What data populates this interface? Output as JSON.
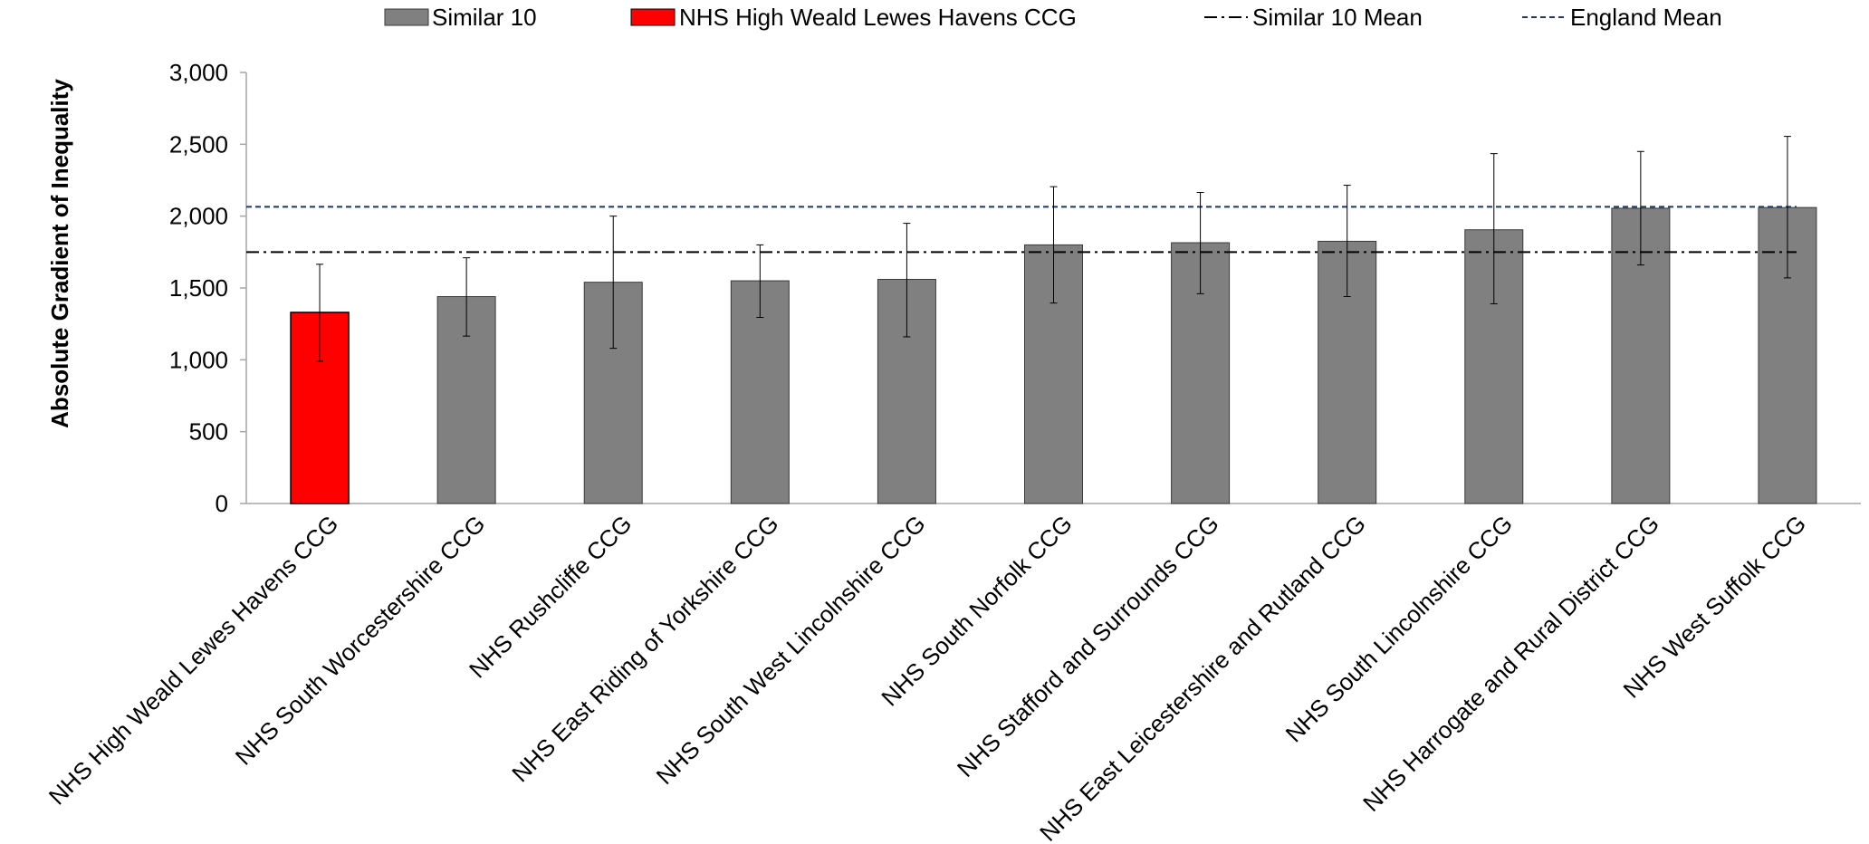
{
  "chart_data": {
    "type": "bar",
    "ylabel": "Absolute Gradient of Inequality",
    "ylim": [
      0,
      3000
    ],
    "yticks": [
      0,
      500,
      1000,
      1500,
      2000,
      2500,
      3000
    ],
    "ytick_labels": [
      "0",
      "500",
      "1,000",
      "1,500",
      "2,000",
      "2,500",
      "3,000"
    ],
    "legend_position": "top",
    "legend": [
      {
        "label": "Similar 10",
        "kind": "bar",
        "color": "#808080"
      },
      {
        "label": "NHS High Weald Lewes Havens CCG",
        "kind": "bar",
        "color": "#ff0000"
      },
      {
        "label": "Similar 10 Mean",
        "kind": "dashdot",
        "color": "#000000"
      },
      {
        "label": "England Mean",
        "kind": "dashed",
        "color": "#1f3864"
      }
    ],
    "categories": [
      "NHS High Weald Lewes Havens CCG",
      "NHS South Worcestershire CCG",
      "NHS Rushcliffe CCG",
      "NHS East Riding of Yorkshire CCG",
      "NHS South West Lincolnshire CCG",
      "NHS South Norfolk CCG",
      "NHS Stafford and Surrounds CCG",
      "NHS East Leicestershire and Rutland CCG",
      "NHS South Lincolnshire CCG",
      "NHS Harrogate and Rural District CCG",
      "NHS West Suffolk CCG"
    ],
    "values": [
      1330,
      1440,
      1540,
      1550,
      1560,
      1800,
      1815,
      1825,
      1905,
      2055,
      2060
    ],
    "error_low": [
      990,
      1165,
      1080,
      1295,
      1160,
      1395,
      1460,
      1440,
      1390,
      1660,
      1570
    ],
    "error_high": [
      1665,
      1710,
      2000,
      1800,
      1950,
      2205,
      2165,
      2215,
      2435,
      2450,
      2555
    ],
    "highlight_index": 0,
    "similar10_mean": 1750,
    "england_mean": 2065,
    "colors": {
      "similar": "#808080",
      "highlight": "#ff0000",
      "similar_mean_line": "#000000",
      "england_mean_line": "#1f3864",
      "axis": "#a6a6a6"
    }
  }
}
